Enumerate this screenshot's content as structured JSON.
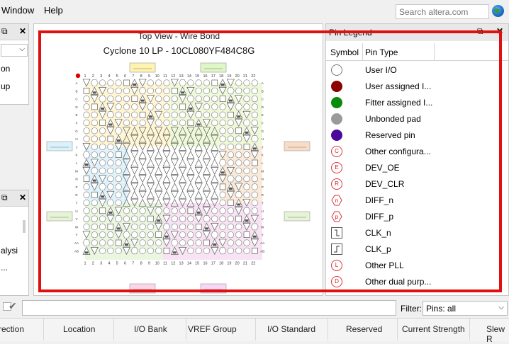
{
  "menu": {
    "window": "Window",
    "help": "Help"
  },
  "search": {
    "placeholder": "Search altera.com"
  },
  "left_panel_top": {
    "items": [
      "on",
      "up"
    ]
  },
  "left_panel_bottom": {
    "items": [
      "alysi",
      "..."
    ]
  },
  "chip": {
    "title": "Top View - Wire Bond",
    "device": "Cyclone 10 LP - 10CL080YF484C8G",
    "columns": [
      "1",
      "2",
      "3",
      "4",
      "5",
      "6",
      "7",
      "8",
      "9",
      "10",
      "11",
      "12",
      "13",
      "14",
      "15",
      "16",
      "17",
      "18",
      "19",
      "20",
      "21",
      "22"
    ],
    "rows": [
      "A",
      "B",
      "C",
      "D",
      "E",
      "F",
      "G",
      "H",
      "J",
      "K",
      "L",
      "M",
      "N",
      "P",
      "R",
      "T",
      "U",
      "V",
      "W",
      "Y",
      "AA",
      "AB"
    ]
  },
  "legend": {
    "title": "Pin Legend",
    "col_symbol": "Symbol",
    "col_type": "Pin Type",
    "items": [
      {
        "label": "User I/O",
        "icon": "white-circle-icon",
        "color": "#ffffff"
      },
      {
        "label": "User assigned I...",
        "icon": "dark-red-circle-icon",
        "color": "#8b0000"
      },
      {
        "label": "Fitter assigned I...",
        "icon": "green-circle-icon",
        "color": "#0a8a0a"
      },
      {
        "label": "Unbonded pad",
        "icon": "gray-circle-icon",
        "color": "#9a9a9a"
      },
      {
        "label": "Reserved pin",
        "icon": "purple-circle-icon",
        "color": "#4b0a9b"
      },
      {
        "label": "Other configura...",
        "icon": "c-letter-icon",
        "letter": "C"
      },
      {
        "label": "DEV_OE",
        "icon": "e-letter-icon",
        "letter": "E"
      },
      {
        "label": "DEV_CLR",
        "icon": "r-letter-icon",
        "letter": "R"
      },
      {
        "label": "DIFF_n",
        "icon": "n-hexagon-icon",
        "letter": "n"
      },
      {
        "label": "DIFF_p",
        "icon": "p-hexagon-icon",
        "letter": "p"
      },
      {
        "label": "CLK_n",
        "icon": "clk-n-icon"
      },
      {
        "label": "CLK_p",
        "icon": "clk-p-icon"
      },
      {
        "label": "Other PLL",
        "icon": "l-letter-icon",
        "letter": "L"
      },
      {
        "label": "Other dual purp...",
        "icon": "d-letter-icon",
        "letter": "D"
      }
    ]
  },
  "filter": {
    "label": "Filter:",
    "value": "Pins: all"
  },
  "table_columns": [
    "rection",
    "Location",
    "I/O Bank",
    "VREF Group",
    "I/O Standard",
    "Reserved",
    "Current Strength",
    "Slew R"
  ]
}
